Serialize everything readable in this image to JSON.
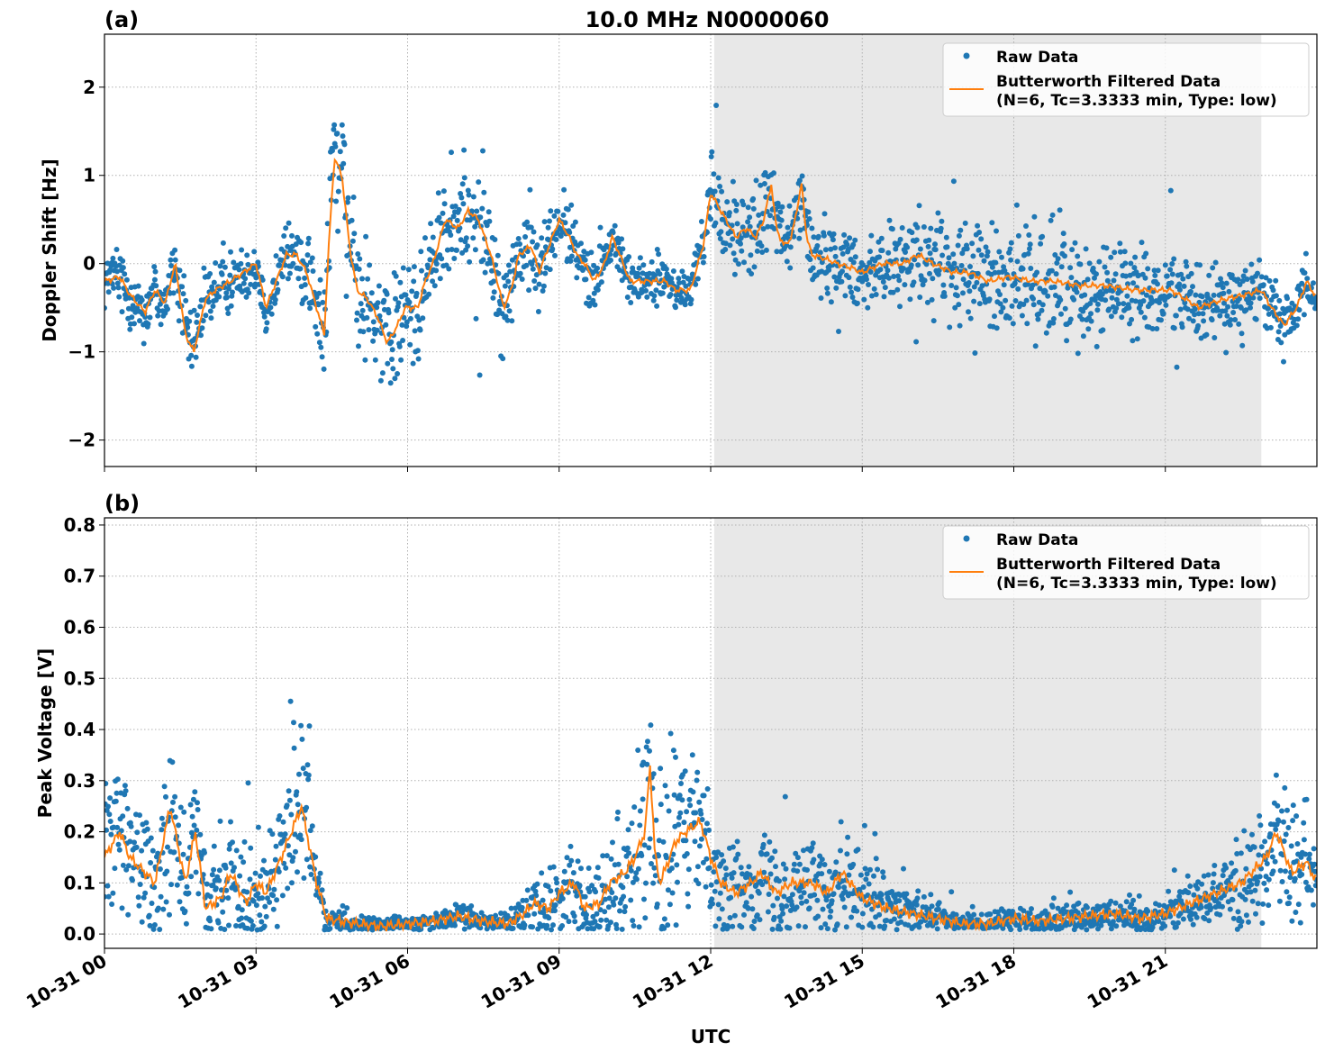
{
  "chart_data": [
    {
      "type": "scatter+line",
      "panel_label": "(a)",
      "title": "10.0 MHz N0000060",
      "ylabel": "Doppler Shift [Hz]",
      "xlabel": "",
      "ylim": [
        -2.3,
        2.6
      ],
      "yticks": [
        -2,
        -1,
        0,
        1,
        2
      ],
      "ytick_labels": [
        "−2",
        "−1",
        "0",
        "1",
        "2"
      ],
      "grid": true,
      "legend": "top-right",
      "shaded_interval_hours": [
        12.07,
        22.9
      ],
      "series": [
        {
          "name": "Raw Data",
          "kind": "scatter",
          "color": "#1f77b4",
          "spread": [
            [
              0,
              0.3
            ],
            [
              1.7,
              0.35
            ],
            [
              3,
              0.25
            ],
            [
              4.3,
              0.5
            ],
            [
              4.6,
              0.9
            ],
            [
              5,
              0.6
            ],
            [
              5.8,
              0.6
            ],
            [
              6.5,
              0.5
            ],
            [
              7.3,
              0.55
            ],
            [
              8,
              0.45
            ],
            [
              9,
              0.35
            ],
            [
              10,
              0.25
            ],
            [
              11.5,
              0.2
            ],
            [
              12.2,
              0.4
            ],
            [
              13.5,
              0.45
            ],
            [
              14.5,
              0.35
            ],
            [
              16,
              0.45
            ],
            [
              17,
              0.6
            ],
            [
              19,
              0.55
            ],
            [
              21,
              0.4
            ],
            [
              23,
              0.35
            ],
            [
              24,
              0.3
            ]
          ]
        },
        {
          "name": "Butterworth Filtered Data\n(N=6, Tc=3.3333 min, Type: low)",
          "kind": "line",
          "color": "#ff7f0e",
          "points": [
            [
              0,
              -0.2
            ],
            [
              0.3,
              -0.15
            ],
            [
              0.5,
              -0.35
            ],
            [
              0.8,
              -0.55
            ],
            [
              1.0,
              -0.3
            ],
            [
              1.2,
              -0.45
            ],
            [
              1.4,
              0.0
            ],
            [
              1.6,
              -0.8
            ],
            [
              1.77,
              -1.0
            ],
            [
              2.0,
              -0.4
            ],
            [
              2.2,
              -0.3
            ],
            [
              2.5,
              -0.2
            ],
            [
              2.75,
              -0.1
            ],
            [
              3.0,
              0.0
            ],
            [
              3.2,
              -0.5
            ],
            [
              3.4,
              -0.2
            ],
            [
              3.6,
              0.1
            ],
            [
              3.8,
              0.1
            ],
            [
              4.0,
              -0.1
            ],
            [
              4.2,
              -0.5
            ],
            [
              4.35,
              -0.8
            ],
            [
              4.45,
              0.3
            ],
            [
              4.55,
              1.2
            ],
            [
              4.7,
              1.0
            ],
            [
              4.85,
              0.2
            ],
            [
              5.0,
              -0.3
            ],
            [
              5.2,
              -0.4
            ],
            [
              5.4,
              -0.6
            ],
            [
              5.6,
              -0.9
            ],
            [
              5.8,
              -0.7
            ],
            [
              5.95,
              -0.5
            ],
            [
              6.2,
              -0.5
            ],
            [
              6.35,
              -0.2
            ],
            [
              6.5,
              0.0
            ],
            [
              6.75,
              0.5
            ],
            [
              7.0,
              0.4
            ],
            [
              7.2,
              0.6
            ],
            [
              7.4,
              0.5
            ],
            [
              7.65,
              0.1
            ],
            [
              7.9,
              -0.5
            ],
            [
              8.05,
              -0.3
            ],
            [
              8.2,
              0.1
            ],
            [
              8.45,
              0.2
            ],
            [
              8.6,
              -0.1
            ],
            [
              8.8,
              0.2
            ],
            [
              9.0,
              0.5
            ],
            [
              9.2,
              0.3
            ],
            [
              9.35,
              0.1
            ],
            [
              9.5,
              0.0
            ],
            [
              9.7,
              -0.2
            ],
            [
              9.9,
              0.0
            ],
            [
              10.05,
              0.3
            ],
            [
              10.2,
              0.1
            ],
            [
              10.4,
              -0.2
            ],
            [
              10.7,
              -0.2
            ],
            [
              11.1,
              -0.2
            ],
            [
              11.3,
              -0.3
            ],
            [
              11.6,
              -0.3
            ],
            [
              11.85,
              0.2
            ],
            [
              12.0,
              0.8
            ],
            [
              12.2,
              0.6
            ],
            [
              12.5,
              0.3
            ],
            [
              12.7,
              0.4
            ],
            [
              12.9,
              0.3
            ],
            [
              13.05,
              0.5
            ],
            [
              13.2,
              0.9
            ],
            [
              13.3,
              0.4
            ],
            [
              13.45,
              0.2
            ],
            [
              13.6,
              0.3
            ],
            [
              13.8,
              0.9
            ],
            [
              13.9,
              0.3
            ],
            [
              14.0,
              0.1
            ],
            [
              14.3,
              0.05
            ],
            [
              14.5,
              0.0
            ],
            [
              14.8,
              -0.05
            ],
            [
              15.0,
              -0.1
            ],
            [
              15.4,
              0.0
            ],
            [
              15.8,
              0.0
            ],
            [
              16.1,
              0.1
            ],
            [
              16.4,
              0.0
            ],
            [
              16.8,
              -0.1
            ],
            [
              17.1,
              -0.1
            ],
            [
              17.5,
              -0.2
            ],
            [
              17.9,
              -0.15
            ],
            [
              18.4,
              -0.2
            ],
            [
              18.8,
              -0.2
            ],
            [
              19.3,
              -0.25
            ],
            [
              19.8,
              -0.25
            ],
            [
              20.4,
              -0.3
            ],
            [
              20.8,
              -0.3
            ],
            [
              21.1,
              -0.3
            ],
            [
              21.4,
              -0.4
            ],
            [
              21.65,
              -0.5
            ],
            [
              21.9,
              -0.45
            ],
            [
              22.2,
              -0.4
            ],
            [
              22.6,
              -0.35
            ],
            [
              22.9,
              -0.3
            ],
            [
              23.1,
              -0.5
            ],
            [
              23.35,
              -0.7
            ],
            [
              23.6,
              -0.5
            ],
            [
              23.8,
              -0.2
            ],
            [
              24.0,
              -0.4
            ]
          ]
        }
      ]
    },
    {
      "type": "scatter+line",
      "panel_label": "(b)",
      "title": "",
      "ylabel": "Peak Voltage [V]",
      "xlabel": "UTC",
      "ylim": [
        -0.028,
        0.814
      ],
      "yticks": [
        0.0,
        0.1,
        0.2,
        0.3,
        0.4,
        0.5,
        0.6,
        0.7,
        0.8
      ],
      "ytick_labels": [
        "0.0",
        "0.1",
        "0.2",
        "0.3",
        "0.4",
        "0.5",
        "0.6",
        "0.7",
        "0.8"
      ],
      "xlim_hours": [
        0,
        24
      ],
      "xticks_hours": [
        0,
        3,
        6,
        9,
        12,
        15,
        18,
        21
      ],
      "xtick_labels": [
        "10-31 00",
        "10-31 03",
        "10-31 06",
        "10-31 09",
        "10-31 12",
        "10-31 15",
        "10-31 18",
        "10-31 21"
      ],
      "grid": true,
      "legend": "top-right",
      "shaded_interval_hours": [
        12.07,
        22.9
      ],
      "series": [
        {
          "name": "Raw Data",
          "kind": "scatter",
          "color": "#1f77b4",
          "spread": [
            [
              0,
              0.12
            ],
            [
              1.3,
              0.15
            ],
            [
              2,
              0.08
            ],
            [
              3.5,
              0.12
            ],
            [
              3.9,
              0.18
            ],
            [
              4.3,
              0.03
            ],
            [
              5,
              0.015
            ],
            [
              8,
              0.02
            ],
            [
              8.5,
              0.05
            ],
            [
              9,
              0.07
            ],
            [
              10,
              0.08
            ],
            [
              10.8,
              0.2
            ],
            [
              11.5,
              0.15
            ],
            [
              12,
              0.1
            ],
            [
              13,
              0.08
            ],
            [
              14.6,
              0.09
            ],
            [
              16,
              0.04
            ],
            [
              17,
              0.015
            ],
            [
              19,
              0.03
            ],
            [
              21,
              0.03
            ],
            [
              22,
              0.06
            ],
            [
              23,
              0.12
            ],
            [
              24,
              0.1
            ]
          ]
        },
        {
          "name": "Butterworth Filtered Data\n(N=6, Tc=3.3333 min, Type: low)",
          "kind": "line",
          "color": "#ff7f0e",
          "points": [
            [
              0,
              0.15
            ],
            [
              0.3,
              0.2
            ],
            [
              0.5,
              0.15
            ],
            [
              0.8,
              0.12
            ],
            [
              1.0,
              0.1
            ],
            [
              1.3,
              0.25
            ],
            [
              1.6,
              0.1
            ],
            [
              1.8,
              0.2
            ],
            [
              2.0,
              0.05
            ],
            [
              2.3,
              0.07
            ],
            [
              2.5,
              0.12
            ],
            [
              2.8,
              0.06
            ],
            [
              3.0,
              0.1
            ],
            [
              3.2,
              0.08
            ],
            [
              3.5,
              0.15
            ],
            [
              3.7,
              0.2
            ],
            [
              3.9,
              0.25
            ],
            [
              4.1,
              0.15
            ],
            [
              4.2,
              0.1
            ],
            [
              4.4,
              0.03
            ],
            [
              5.0,
              0.02
            ],
            [
              5.5,
              0.015
            ],
            [
              6.0,
              0.02
            ],
            [
              6.5,
              0.025
            ],
            [
              7.0,
              0.035
            ],
            [
              7.5,
              0.025
            ],
            [
              8.0,
              0.02
            ],
            [
              8.3,
              0.04
            ],
            [
              8.5,
              0.06
            ],
            [
              8.8,
              0.05
            ],
            [
              9.0,
              0.08
            ],
            [
              9.3,
              0.1
            ],
            [
              9.5,
              0.05
            ],
            [
              9.8,
              0.06
            ],
            [
              10.0,
              0.1
            ],
            [
              10.3,
              0.12
            ],
            [
              10.5,
              0.15
            ],
            [
              10.7,
              0.2
            ],
            [
              10.8,
              0.33
            ],
            [
              10.9,
              0.15
            ],
            [
              11.0,
              0.1
            ],
            [
              11.3,
              0.18
            ],
            [
              11.5,
              0.2
            ],
            [
              11.8,
              0.22
            ],
            [
              12.0,
              0.15
            ],
            [
              12.2,
              0.1
            ],
            [
              12.5,
              0.08
            ],
            [
              12.8,
              0.1
            ],
            [
              13.0,
              0.12
            ],
            [
              13.3,
              0.08
            ],
            [
              13.6,
              0.1
            ],
            [
              14.0,
              0.1
            ],
            [
              14.3,
              0.08
            ],
            [
              14.6,
              0.12
            ],
            [
              15.0,
              0.07
            ],
            [
              15.5,
              0.05
            ],
            [
              16.0,
              0.04
            ],
            [
              16.5,
              0.03
            ],
            [
              17.0,
              0.02
            ],
            [
              17.5,
              0.02
            ],
            [
              18.0,
              0.03
            ],
            [
              18.5,
              0.025
            ],
            [
              19.0,
              0.03
            ],
            [
              19.5,
              0.035
            ],
            [
              20.0,
              0.04
            ],
            [
              20.5,
              0.03
            ],
            [
              21.0,
              0.04
            ],
            [
              21.5,
              0.06
            ],
            [
              22.0,
              0.08
            ],
            [
              22.5,
              0.1
            ],
            [
              23.0,
              0.15
            ],
            [
              23.2,
              0.2
            ],
            [
              23.5,
              0.12
            ],
            [
              23.8,
              0.14
            ],
            [
              24.0,
              0.1
            ]
          ]
        }
      ]
    }
  ]
}
